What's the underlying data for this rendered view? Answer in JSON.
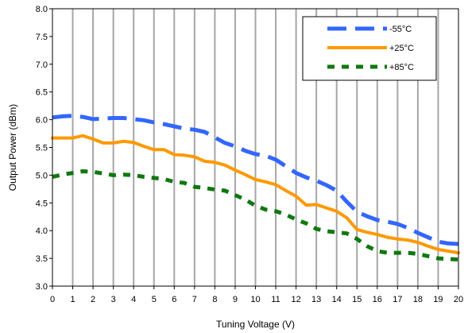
{
  "chart_data": {
    "type": "line",
    "title": "",
    "xlabel": "Tuning Voltage (V)",
    "ylabel": "Output Power (dBm)",
    "xlim": [
      0,
      20
    ],
    "ylim": [
      3.0,
      8.0
    ],
    "x_ticks": [
      0,
      1,
      2,
      3,
      4,
      5,
      6,
      7,
      8,
      9,
      10,
      11,
      12,
      13,
      14,
      15,
      16,
      17,
      18,
      19,
      20
    ],
    "y_ticks": [
      "3.0",
      "3.5",
      "4.0",
      "4.5",
      "5.0",
      "5.5",
      "6.0",
      "6.5",
      "7.0",
      "7.5",
      "8.0"
    ],
    "grid": "vertical",
    "legend_position": "top-right",
    "series": [
      {
        "name": "-55°C",
        "color": "#3366ff",
        "style": "long-dash",
        "x": [
          0,
          0.5,
          1,
          1.5,
          2,
          2.5,
          3,
          3.5,
          4,
          4.5,
          5,
          5.5,
          6,
          6.5,
          7,
          7.5,
          8,
          8.5,
          9,
          9.5,
          10,
          10.5,
          11,
          11.5,
          12,
          12.5,
          13,
          13.5,
          14,
          14.5,
          15,
          15.5,
          16,
          16.5,
          17,
          17.5,
          18,
          18.5,
          19,
          19.5,
          20
        ],
        "y": [
          6.04,
          6.06,
          6.07,
          6.05,
          6.01,
          6.02,
          6.03,
          6.03,
          6.01,
          5.99,
          5.95,
          5.92,
          5.88,
          5.84,
          5.82,
          5.78,
          5.68,
          5.58,
          5.52,
          5.44,
          5.38,
          5.35,
          5.28,
          5.16,
          5.04,
          4.96,
          4.9,
          4.82,
          4.72,
          4.52,
          4.34,
          4.26,
          4.19,
          4.16,
          4.12,
          4.05,
          3.96,
          3.88,
          3.8,
          3.77,
          3.76
        ]
      },
      {
        "name": "+25°C",
        "color": "#ff9900",
        "style": "solid",
        "x": [
          0,
          0.5,
          1,
          1.5,
          2,
          2.5,
          3,
          3.5,
          4,
          4.5,
          5,
          5.5,
          6,
          6.5,
          7,
          7.5,
          8,
          8.5,
          9,
          9.5,
          10,
          10.5,
          11,
          11.5,
          12,
          12.5,
          13,
          13.5,
          14,
          14.5,
          15,
          15.5,
          16,
          16.5,
          17,
          17.5,
          18,
          18.5,
          19,
          19.5,
          20
        ],
        "y": [
          5.67,
          5.67,
          5.67,
          5.71,
          5.65,
          5.58,
          5.58,
          5.61,
          5.59,
          5.52,
          5.46,
          5.46,
          5.37,
          5.36,
          5.33,
          5.25,
          5.23,
          5.18,
          5.09,
          5.01,
          4.92,
          4.88,
          4.83,
          4.72,
          4.62,
          4.46,
          4.47,
          4.41,
          4.35,
          4.23,
          4.02,
          3.97,
          3.93,
          3.88,
          3.85,
          3.83,
          3.79,
          3.72,
          3.66,
          3.63,
          3.6
        ]
      },
      {
        "name": "+85°C",
        "color": "#117711",
        "style": "short-dash",
        "x": [
          0,
          0.5,
          1,
          1.5,
          2,
          2.5,
          3,
          3.5,
          4,
          4.5,
          5,
          5.5,
          6,
          6.5,
          7,
          7.5,
          8,
          8.5,
          9,
          9.5,
          10,
          10.5,
          11,
          11.5,
          12,
          12.5,
          13,
          13.5,
          14,
          14.5,
          15,
          15.5,
          16,
          16.5,
          17,
          17.5,
          18,
          18.5,
          19,
          19.5,
          20
        ],
        "y": [
          4.97,
          5.01,
          5.04,
          5.07,
          5.06,
          5.03,
          5.0,
          5.01,
          5.0,
          4.97,
          4.95,
          4.93,
          4.88,
          4.86,
          4.79,
          4.77,
          4.74,
          4.72,
          4.64,
          4.56,
          4.45,
          4.38,
          4.35,
          4.29,
          4.2,
          4.13,
          4.03,
          3.99,
          3.97,
          3.95,
          3.85,
          3.72,
          3.63,
          3.6,
          3.6,
          3.6,
          3.58,
          3.54,
          3.5,
          3.49,
          3.48
        ]
      }
    ]
  }
}
